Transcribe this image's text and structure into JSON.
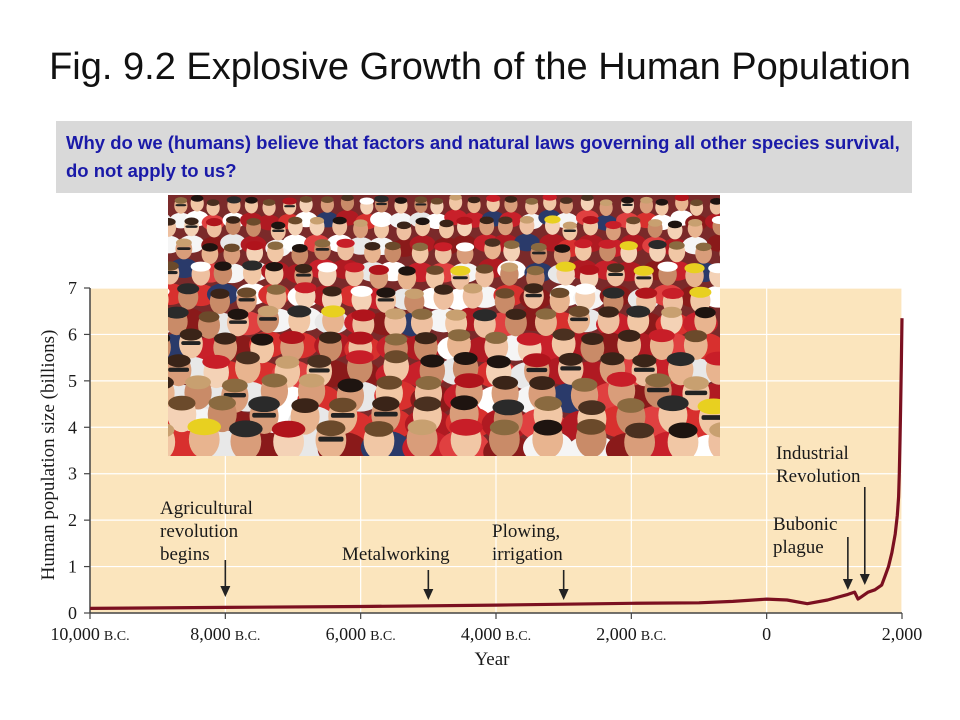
{
  "slide": {
    "title": "Fig. 9.2  Explosive Growth of the Human Population",
    "question": "Why do we (humans) believe that factors and natural laws governing all other species survival, do not apply to us?"
  },
  "photo": {
    "subject": "crowd-of-people"
  },
  "chart_data": {
    "type": "line",
    "xlabel": "Year",
    "ylabel": "Human population size (billions)",
    "xlim": [
      -10000,
      2000
    ],
    "ylim": [
      0,
      7
    ],
    "x_ticks": [
      {
        "value": -10000,
        "num": "10,000",
        "era": "B.C."
      },
      {
        "value": -8000,
        "num": "8,000",
        "era": "B.C."
      },
      {
        "value": -6000,
        "num": "6,000",
        "era": "B.C."
      },
      {
        "value": -4000,
        "num": "4,000",
        "era": "B.C."
      },
      {
        "value": -2000,
        "num": "2,000",
        "era": "B.C."
      },
      {
        "value": 0,
        "num": "0",
        "era": ""
      },
      {
        "value": 2000,
        "num": "2,000",
        "era": ""
      }
    ],
    "y_ticks": [
      0,
      1,
      2,
      3,
      4,
      5,
      6,
      7
    ],
    "grid": true,
    "series": [
      {
        "color": "#7b1020",
        "points": [
          [
            -10000,
            0.1
          ],
          [
            -8000,
            0.12
          ],
          [
            -6000,
            0.14
          ],
          [
            -4000,
            0.17
          ],
          [
            -2000,
            0.21
          ],
          [
            -1000,
            0.22
          ],
          [
            -500,
            0.25
          ],
          [
            0,
            0.3
          ],
          [
            300,
            0.28
          ],
          [
            600,
            0.2
          ],
          [
            900,
            0.28
          ],
          [
            1200,
            0.4
          ],
          [
            1300,
            0.45
          ],
          [
            1350,
            0.3
          ],
          [
            1400,
            0.35
          ],
          [
            1500,
            0.45
          ],
          [
            1600,
            0.5
          ],
          [
            1700,
            0.6
          ],
          [
            1750,
            0.8
          ],
          [
            1800,
            1.0
          ],
          [
            1850,
            1.3
          ],
          [
            1900,
            1.7
          ],
          [
            1930,
            2.1
          ],
          [
            1950,
            2.5
          ],
          [
            1960,
            3.0
          ],
          [
            1970,
            3.7
          ],
          [
            1980,
            4.4
          ],
          [
            1990,
            5.3
          ],
          [
            2000,
            6.35
          ]
        ]
      }
    ],
    "annotations": [
      {
        "lines": [
          "Agricultural",
          "revolution",
          "begins"
        ],
        "x": -8000
      },
      {
        "lines": [
          "Metalworking"
        ],
        "x": -5000
      },
      {
        "lines": [
          "Plowing,",
          "irrigation"
        ],
        "x": -3000
      },
      {
        "lines": [
          "Bubonic",
          "plague"
        ],
        "x": 1200
      },
      {
        "lines": [
          "Industrial",
          "Revolution"
        ],
        "x": 1450
      }
    ],
    "colors": {
      "plot_background": "#fbe5bd",
      "line": "#7b1020",
      "grid": "#ffffff",
      "axis": "#444444"
    }
  }
}
